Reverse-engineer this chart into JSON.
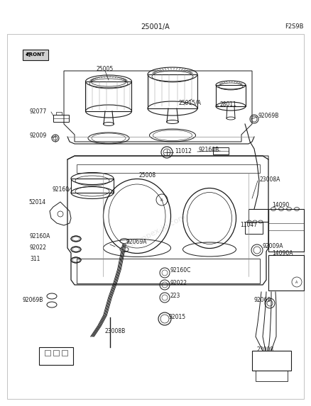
{
  "title_center": "25001/A",
  "title_right": "F2S9B",
  "bg_color": "#ffffff",
  "line_color": "#1a1a1a",
  "lw": 0.7,
  "figsize": [
    4.38,
    5.73
  ],
  "dpi": 100,
  "watermark": "www.impex-jp.com",
  "label_fontsize": 5.5
}
